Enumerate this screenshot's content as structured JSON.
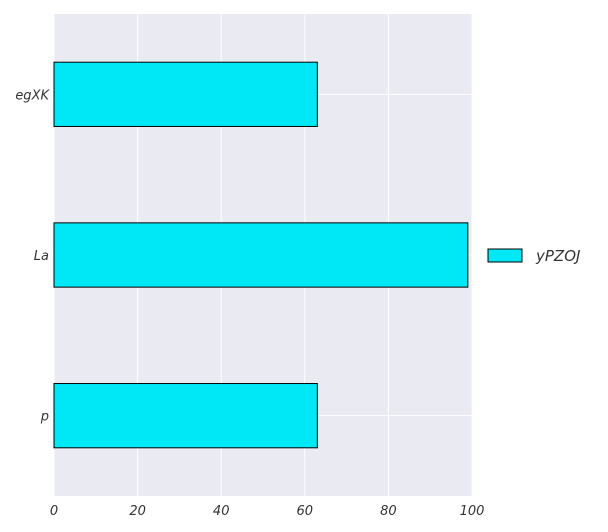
{
  "chart_data": {
    "type": "bar",
    "orientation": "horizontal",
    "categories": [
      "egXK",
      "La",
      "p"
    ],
    "series": [
      {
        "name": "yPZOJ",
        "values": [
          63,
          99,
          63
        ],
        "color": "#00e8f5"
      }
    ],
    "xlim": [
      0,
      100
    ],
    "xticks": [
      0,
      20,
      40,
      60,
      80,
      100
    ],
    "grid": true,
    "legend": "right",
    "background_color": "#eaeaf2",
    "edge_color": "#000000"
  }
}
